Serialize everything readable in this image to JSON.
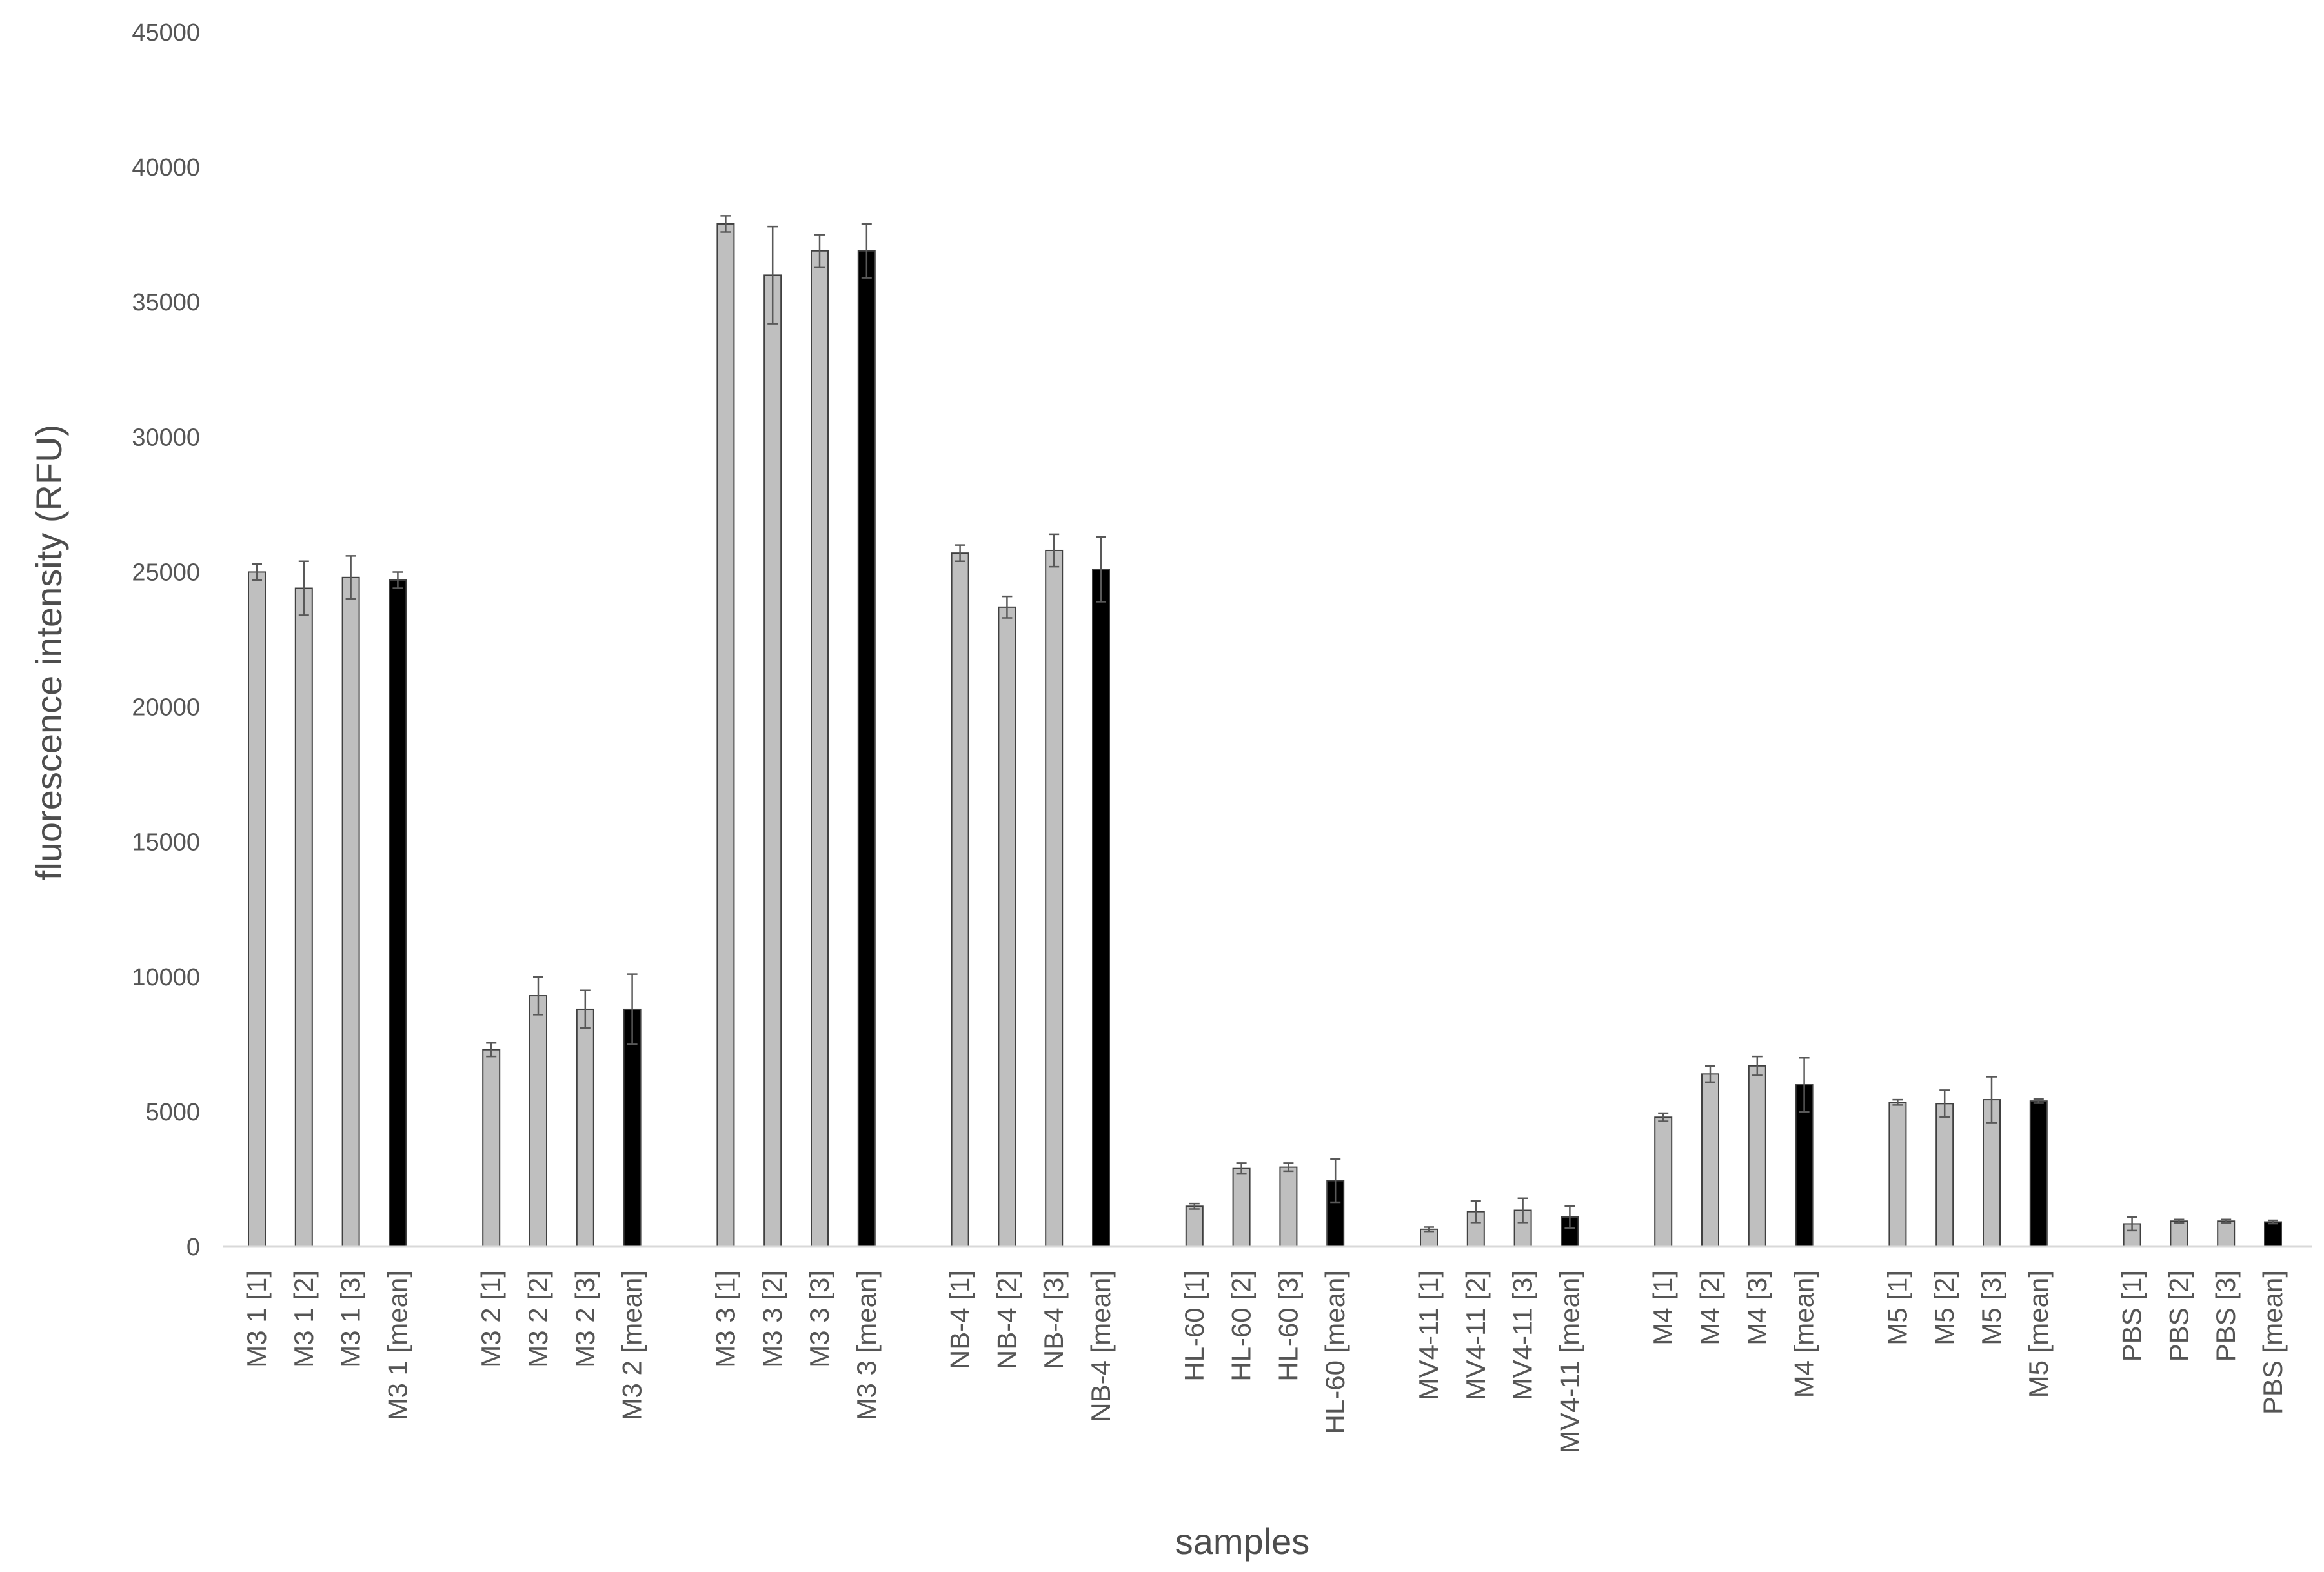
{
  "colors": {
    "replicate_fill": "#bfbfbf",
    "mean_fill": "#000000",
    "bar_outline": "#404040",
    "error_bar": "#595959",
    "axis_line": "#d9d9d9",
    "text": "#555555"
  },
  "chart_data": {
    "type": "bar",
    "title": "",
    "xlabel": "samples",
    "ylabel": "fluorescence intensity (RFU)",
    "ylim": [
      0,
      45000
    ],
    "yticks": [
      "0",
      "5000",
      "10000",
      "15000",
      "20000",
      "25000",
      "30000",
      "35000",
      "40000",
      "45000"
    ],
    "grid": false,
    "legend": "none",
    "groups": [
      {
        "bars": [
          {
            "label": "M3 1 [1]",
            "value": 25000,
            "error": 300,
            "kind": "replicate"
          },
          {
            "label": "M3 1 [2]",
            "value": 24400,
            "error": 1000,
            "kind": "replicate"
          },
          {
            "label": "M3 1 [3]",
            "value": 24800,
            "error": 800,
            "kind": "replicate"
          },
          {
            "label": "M3 1 [mean]",
            "value": 24700,
            "error": 300,
            "kind": "mean"
          }
        ]
      },
      {
        "bars": [
          {
            "label": "M3 2 [1]",
            "value": 7300,
            "error": 250,
            "kind": "replicate"
          },
          {
            "label": "M3 2 [2]",
            "value": 9300,
            "error": 700,
            "kind": "replicate"
          },
          {
            "label": "M3 2 [3]",
            "value": 8800,
            "error": 700,
            "kind": "replicate"
          },
          {
            "label": "M3 2 [mean]",
            "value": 8800,
            "error": 1300,
            "kind": "mean"
          }
        ]
      },
      {
        "bars": [
          {
            "label": "M3 3 [1]",
            "value": 37900,
            "error": 300,
            "kind": "replicate"
          },
          {
            "label": "M3 3 [2]",
            "value": 36000,
            "error": 1800,
            "kind": "replicate"
          },
          {
            "label": "M3 3 [3]",
            "value": 36900,
            "error": 600,
            "kind": "replicate"
          },
          {
            "label": "M3 3 [mean]",
            "value": 36900,
            "error": 1000,
            "kind": "mean"
          }
        ]
      },
      {
        "bars": [
          {
            "label": "NB-4 [1]",
            "value": 25700,
            "error": 300,
            "kind": "replicate"
          },
          {
            "label": "NB-4 [2]",
            "value": 23700,
            "error": 400,
            "kind": "replicate"
          },
          {
            "label": "NB-4 [3]",
            "value": 25800,
            "error": 600,
            "kind": "replicate"
          },
          {
            "label": "NB-4  [mean]",
            "value": 25100,
            "error": 1200,
            "kind": "mean"
          }
        ]
      },
      {
        "bars": [
          {
            "label": "HL-60 [1]",
            "value": 1500,
            "error": 100,
            "kind": "replicate"
          },
          {
            "label": "HL-60 [2]",
            "value": 2900,
            "error": 200,
            "kind": "replicate"
          },
          {
            "label": "HL-60 [3]",
            "value": 2950,
            "error": 150,
            "kind": "replicate"
          },
          {
            "label": "HL-60 [mean]",
            "value": 2450,
            "error": 800,
            "kind": "mean"
          }
        ]
      },
      {
        "bars": [
          {
            "label": "MV4-11 [1]",
            "value": 650,
            "error": 80,
            "kind": "replicate"
          },
          {
            "label": "MV4-11 [2]",
            "value": 1300,
            "error": 400,
            "kind": "replicate"
          },
          {
            "label": "MV4-11 [3]",
            "value": 1350,
            "error": 450,
            "kind": "replicate"
          },
          {
            "label": "MV4-11 [mean]",
            "value": 1100,
            "error": 400,
            "kind": "mean"
          }
        ]
      },
      {
        "bars": [
          {
            "label": "M4 [1]",
            "value": 4800,
            "error": 150,
            "kind": "replicate"
          },
          {
            "label": "M4 [2]",
            "value": 6400,
            "error": 300,
            "kind": "replicate"
          },
          {
            "label": "M4 [3]",
            "value": 6700,
            "error": 350,
            "kind": "replicate"
          },
          {
            "label": "M4 [mean]",
            "value": 6000,
            "error": 1000,
            "kind": "mean"
          }
        ]
      },
      {
        "bars": [
          {
            "label": "M5 [1]",
            "value": 5350,
            "error": 100,
            "kind": "replicate"
          },
          {
            "label": "M5 [2]",
            "value": 5300,
            "error": 500,
            "kind": "replicate"
          },
          {
            "label": "M5 [3]",
            "value": 5450,
            "error": 850,
            "kind": "replicate"
          },
          {
            "label": "M5 [mean]",
            "value": 5400,
            "error": 80,
            "kind": "mean"
          }
        ]
      },
      {
        "bars": [
          {
            "label": "PBS [1]",
            "value": 850,
            "error": 250,
            "kind": "replicate"
          },
          {
            "label": "PBS [2]",
            "value": 950,
            "error": 60,
            "kind": "replicate"
          },
          {
            "label": "PBS [3]",
            "value": 950,
            "error": 60,
            "kind": "replicate"
          },
          {
            "label": "PBS [mean]",
            "value": 920,
            "error": 60,
            "kind": "mean"
          }
        ]
      }
    ]
  }
}
